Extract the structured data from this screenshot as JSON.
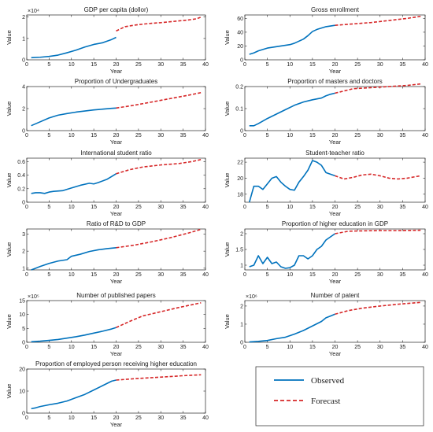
{
  "colors": {
    "observed": "#0072BD",
    "forecast": "#D62728",
    "axis": "#262626"
  },
  "legend": {
    "observed_label": "Observed",
    "forecast_label": "Forecast"
  },
  "chart_data": [
    {
      "type": "line",
      "title": "GDP per capita (dollor)",
      "xlabel": "Year",
      "ylabel": "Value",
      "exponent": "×10⁴",
      "xlim": [
        0,
        40
      ],
      "ylim": [
        0,
        2.1
      ],
      "xticks": [
        0,
        5,
        10,
        15,
        20,
        25,
        30,
        35,
        40
      ],
      "yticks": [
        0,
        1,
        2
      ],
      "ytick_labels": [
        "0",
        "1",
        "2"
      ],
      "series": [
        {
          "name": "Observed",
          "x": [
            1,
            3,
            5,
            7,
            9,
            11,
            13,
            15,
            17,
            19,
            20
          ],
          "y": [
            0.1,
            0.12,
            0.16,
            0.22,
            0.33,
            0.45,
            0.6,
            0.72,
            0.8,
            0.95,
            1.05
          ]
        },
        {
          "name": "Forecast",
          "x": [
            20,
            22,
            24,
            26,
            28,
            30,
            32,
            34,
            36,
            38,
            39
          ],
          "y": [
            1.35,
            1.55,
            1.62,
            1.67,
            1.71,
            1.74,
            1.78,
            1.82,
            1.86,
            1.92,
            2.0
          ]
        }
      ]
    },
    {
      "type": "line",
      "title": "Gross enrollment",
      "xlabel": "Year",
      "ylabel": "Value",
      "xlim": [
        0,
        40
      ],
      "ylim": [
        0,
        65
      ],
      "xticks": [
        0,
        5,
        10,
        15,
        20,
        25,
        30,
        35,
        40
      ],
      "yticks": [
        0,
        20,
        40,
        60
      ],
      "ytick_labels": [
        "0",
        "20",
        "40",
        "60"
      ],
      "series": [
        {
          "name": "Observed",
          "x": [
            1,
            2,
            3,
            4,
            5,
            6,
            7,
            8,
            9,
            10,
            11,
            12,
            13,
            14,
            15,
            16,
            17,
            18,
            19,
            20
          ],
          "y": [
            8,
            10,
            13,
            15,
            17,
            18,
            19,
            20,
            21,
            22,
            24,
            27,
            30,
            35,
            41,
            44,
            46,
            48,
            49,
            50
          ]
        },
        {
          "name": "Forecast",
          "x": [
            20,
            24,
            28,
            32,
            36,
            39
          ],
          "y": [
            50,
            52,
            54,
            57,
            60,
            63
          ]
        }
      ]
    },
    {
      "type": "line",
      "title": "Proportion of Undergraduates",
      "xlabel": "Year",
      "ylabel": "Value",
      "xlim": [
        0,
        40
      ],
      "ylim": [
        0,
        4
      ],
      "xticks": [
        0,
        5,
        10,
        15,
        20,
        25,
        30,
        35,
        40
      ],
      "yticks": [
        0,
        2,
        4
      ],
      "ytick_labels": [
        "0",
        "2",
        "4"
      ],
      "series": [
        {
          "name": "Observed",
          "x": [
            1,
            3,
            5,
            7,
            9,
            11,
            13,
            15,
            17,
            19,
            20
          ],
          "y": [
            0.45,
            0.8,
            1.15,
            1.4,
            1.55,
            1.68,
            1.78,
            1.88,
            1.95,
            2.02,
            2.05
          ]
        },
        {
          "name": "Forecast",
          "x": [
            20,
            24,
            28,
            32,
            36,
            39
          ],
          "y": [
            2.05,
            2.3,
            2.6,
            2.9,
            3.2,
            3.45
          ]
        }
      ]
    },
    {
      "type": "line",
      "title": "Proportion of masters and doctors",
      "xlabel": "Year",
      "ylabel": "Value",
      "xlim": [
        0,
        40
      ],
      "ylim": [
        0,
        0.2
      ],
      "xticks": [
        0,
        5,
        10,
        15,
        20,
        25,
        30,
        35,
        40
      ],
      "yticks": [
        0,
        0.1,
        0.2
      ],
      "ytick_labels": [
        "0",
        "0.1",
        "0.2"
      ],
      "series": [
        {
          "name": "Observed",
          "x": [
            1,
            2,
            3,
            5,
            7,
            9,
            11,
            13,
            15,
            17,
            18,
            19,
            20
          ],
          "y": [
            0.022,
            0.022,
            0.032,
            0.055,
            0.075,
            0.095,
            0.115,
            0.13,
            0.14,
            0.148,
            0.158,
            0.165,
            0.17
          ]
        },
        {
          "name": "Forecast",
          "x": [
            20,
            24,
            28,
            32,
            36,
            39
          ],
          "y": [
            0.17,
            0.19,
            0.195,
            0.2,
            0.205,
            0.212
          ]
        }
      ]
    },
    {
      "type": "line",
      "title": "International student ratio",
      "xlabel": "Year",
      "ylabel": "Value",
      "xlim": [
        0,
        40
      ],
      "ylim": [
        0,
        0.65
      ],
      "xticks": [
        0,
        5,
        10,
        15,
        20,
        25,
        30,
        35,
        40
      ],
      "yticks": [
        0,
        0.2,
        0.4,
        0.6
      ],
      "ytick_labels": [
        "0",
        "0.2",
        "0.4",
        "0.6"
      ],
      "series": [
        {
          "name": "Observed",
          "x": [
            1,
            2,
            3,
            4,
            5,
            6,
            8,
            10,
            12,
            14,
            15,
            16,
            18,
            19,
            20
          ],
          "y": [
            0.13,
            0.14,
            0.14,
            0.13,
            0.15,
            0.16,
            0.17,
            0.21,
            0.25,
            0.28,
            0.27,
            0.29,
            0.34,
            0.38,
            0.42
          ]
        },
        {
          "name": "Forecast",
          "x": [
            20,
            23,
            26,
            30,
            34,
            37,
            39
          ],
          "y": [
            0.42,
            0.48,
            0.52,
            0.55,
            0.57,
            0.6,
            0.63
          ]
        }
      ]
    },
    {
      "type": "line",
      "title": "Student-teacher ratio",
      "xlabel": "Year",
      "ylabel": "Value",
      "xlim": [
        0,
        40
      ],
      "ylim": [
        17,
        22.5
      ],
      "xticks": [
        0,
        5,
        10,
        15,
        20,
        25,
        30,
        35,
        40
      ],
      "yticks": [
        18,
        20,
        22
      ],
      "ytick_labels": [
        "18",
        "20",
        "22"
      ],
      "series": [
        {
          "name": "Observed",
          "x": [
            1,
            2,
            3,
            4,
            5,
            6,
            7,
            8,
            9,
            10,
            11,
            12,
            13,
            14,
            15,
            16,
            17,
            18,
            19,
            20
          ],
          "y": [
            17.0,
            19.0,
            19.0,
            18.6,
            19.3,
            20.0,
            20.2,
            19.5,
            19.0,
            18.6,
            18.5,
            19.5,
            20.2,
            21.0,
            22.2,
            22.0,
            21.6,
            20.7,
            20.5,
            20.3
          ]
        },
        {
          "name": "Forecast",
          "x": [
            20,
            22,
            24,
            26,
            28,
            30,
            32,
            34,
            36,
            38,
            39
          ],
          "y": [
            20.3,
            19.9,
            20.1,
            20.4,
            20.5,
            20.3,
            20.0,
            19.9,
            20.0,
            20.2,
            20.3
          ]
        }
      ]
    },
    {
      "type": "line",
      "title": "Ratio of R&D to GDP",
      "xlabel": "Year",
      "ylabel": "Value",
      "xlim": [
        0,
        40
      ],
      "ylim": [
        0.9,
        3.3
      ],
      "xticks": [
        0,
        5,
        10,
        15,
        20,
        25,
        30,
        35,
        40
      ],
      "yticks": [
        1,
        2,
        3
      ],
      "ytick_labels": [
        "1",
        "2",
        "3"
      ],
      "series": [
        {
          "name": "Observed",
          "x": [
            1,
            2,
            3,
            5,
            7,
            9,
            10,
            12,
            14,
            16,
            18,
            20
          ],
          "y": [
            0.9,
            1.0,
            1.1,
            1.28,
            1.42,
            1.5,
            1.7,
            1.82,
            1.98,
            2.08,
            2.15,
            2.2
          ]
        },
        {
          "name": "Forecast",
          "x": [
            20,
            24,
            28,
            32,
            36,
            39
          ],
          "y": [
            2.2,
            2.35,
            2.55,
            2.78,
            3.05,
            3.28
          ]
        }
      ]
    },
    {
      "type": "line",
      "title": "Proportion of higher education in GDP",
      "xlabel": "Year",
      "ylabel": "Value",
      "xlim": [
        0,
        40
      ],
      "ylim": [
        0.85,
        2.15
      ],
      "xticks": [
        0,
        5,
        10,
        15,
        20,
        25,
        30,
        35,
        40
      ],
      "yticks": [
        1,
        1.5,
        2
      ],
      "ytick_labels": [
        "1",
        "1.5",
        "2"
      ],
      "series": [
        {
          "name": "Observed",
          "x": [
            1,
            2,
            3,
            4,
            5,
            6,
            7,
            8,
            9,
            10,
            11,
            12,
            13,
            14,
            15,
            16,
            17,
            18,
            19,
            20
          ],
          "y": [
            0.95,
            1.0,
            1.3,
            1.05,
            1.25,
            1.05,
            1.1,
            0.95,
            0.9,
            0.92,
            1.0,
            1.3,
            1.3,
            1.2,
            1.3,
            1.5,
            1.6,
            1.8,
            1.9,
            2.0
          ]
        },
        {
          "name": "Forecast",
          "x": [
            20,
            23,
            26,
            30,
            34,
            39
          ],
          "y": [
            2.0,
            2.08,
            2.09,
            2.1,
            2.1,
            2.11
          ]
        }
      ]
    },
    {
      "type": "line",
      "title": "Number of published papers",
      "xlabel": "Year",
      "ylabel": "Value",
      "exponent": "×10⁵",
      "xlim": [
        0,
        40
      ],
      "ylim": [
        0,
        15
      ],
      "xticks": [
        0,
        5,
        10,
        15,
        20,
        25,
        30,
        35,
        40
      ],
      "yticks": [
        0,
        5,
        10,
        15
      ],
      "ytick_labels": [
        "0",
        "5",
        "10",
        "15"
      ],
      "series": [
        {
          "name": "Observed",
          "x": [
            1,
            3,
            5,
            7,
            9,
            11,
            13,
            15,
            17,
            19,
            20
          ],
          "y": [
            0.2,
            0.4,
            0.7,
            1.0,
            1.5,
            2.0,
            2.6,
            3.3,
            4.0,
            4.8,
            5.3
          ]
        },
        {
          "name": "Forecast",
          "x": [
            20,
            23,
            26,
            30,
            34,
            39
          ],
          "y": [
            5.3,
            7.5,
            9.5,
            11.0,
            12.5,
            14.2
          ]
        }
      ]
    },
    {
      "type": "line",
      "title": "Number of patent",
      "xlabel": "Year",
      "ylabel": "Value",
      "exponent": "×10⁶",
      "xlim": [
        0,
        40
      ],
      "ylim": [
        0,
        2.3
      ],
      "xticks": [
        0,
        5,
        10,
        15,
        20,
        25,
        30,
        35,
        40
      ],
      "yticks": [
        0,
        1,
        2
      ],
      "ytick_labels": [
        "0",
        "1",
        "2"
      ],
      "series": [
        {
          "name": "Observed",
          "x": [
            1,
            3,
            5,
            7,
            9,
            11,
            13,
            15,
            17,
            18,
            19,
            20
          ],
          "y": [
            0.02,
            0.05,
            0.1,
            0.2,
            0.28,
            0.45,
            0.65,
            0.9,
            1.15,
            1.35,
            1.45,
            1.55
          ]
        },
        {
          "name": "Forecast",
          "x": [
            20,
            23,
            26,
            30,
            34,
            39
          ],
          "y": [
            1.55,
            1.75,
            1.88,
            2.0,
            2.1,
            2.2
          ]
        }
      ]
    },
    {
      "type": "line",
      "title": "Proportion of employed person receiving higher education",
      "xlabel": "Year",
      "ylabel": "Value",
      "xlim": [
        0,
        40
      ],
      "ylim": [
        0,
        20
      ],
      "xticks": [
        0,
        5,
        10,
        15,
        20,
        25,
        30,
        35,
        40
      ],
      "yticks": [
        0,
        10,
        20
      ],
      "ytick_labels": [
        "0",
        "10",
        "20"
      ],
      "series": [
        {
          "name": "Observed",
          "x": [
            1,
            2,
            3,
            5,
            7,
            9,
            11,
            13,
            15,
            17,
            19,
            20
          ],
          "y": [
            2.0,
            2.4,
            3.0,
            3.8,
            4.5,
            5.5,
            7.0,
            8.5,
            10.5,
            12.5,
            14.5,
            15.0
          ]
        },
        {
          "name": "Forecast",
          "x": [
            20,
            24,
            28,
            32,
            36,
            39
          ],
          "y": [
            15.0,
            15.6,
            16.1,
            16.6,
            17.1,
            17.4
          ]
        }
      ]
    }
  ]
}
